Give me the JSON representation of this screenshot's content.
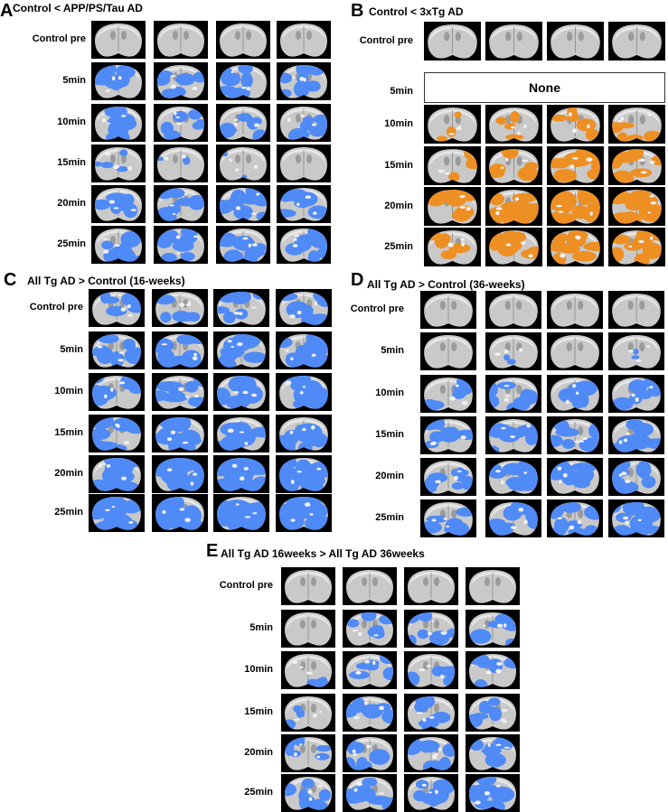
{
  "colors": {
    "blue": "#4f8af6",
    "orange": "#ee8f23",
    "brain": "#c9c9c9",
    "background": "#000000"
  },
  "panels": {
    "A": {
      "letter": "A",
      "title": "Control < APP/PS/Tau AD",
      "color": "blue",
      "rows": [
        "Control pre",
        "5min",
        "10min",
        "15min",
        "20min",
        "25min"
      ],
      "coverage": [
        [
          0,
          0,
          0,
          0
        ],
        [
          0.55,
          0.45,
          0.5,
          0.55
        ],
        [
          0.5,
          0.45,
          0.45,
          0.5
        ],
        [
          0.25,
          0.1,
          0.05,
          0.0
        ],
        [
          0.55,
          0.55,
          0.55,
          0.55
        ],
        [
          0.55,
          0.55,
          0.55,
          0.55
        ]
      ]
    },
    "B": {
      "letter": "B",
      "title": "Control < 3xTg AD",
      "color": "orange",
      "rows": [
        "Control pre",
        "5min",
        "10min",
        "15min",
        "20min",
        "25min"
      ],
      "none_label": "None",
      "coverage": [
        [
          0,
          0,
          0,
          0
        ],
        null,
        [
          0.2,
          0.3,
          0.35,
          0.35
        ],
        [
          0.3,
          0.4,
          0.55,
          0.6
        ],
        [
          0.55,
          0.7,
          0.75,
          0.8
        ],
        [
          0.45,
          0.55,
          0.55,
          0.6
        ]
      ]
    },
    "C": {
      "letter": "C",
      "title": "All Tg AD > Control (16-weeks)",
      "color": "blue",
      "rows": [
        "Control pre",
        "5min",
        "10min",
        "15min",
        "20min",
        "25min"
      ],
      "coverage": [
        [
          0.4,
          0.45,
          0.45,
          0.6
        ],
        [
          0.55,
          0.65,
          0.65,
          0.65
        ],
        [
          0.6,
          0.65,
          0.65,
          0.65
        ],
        [
          0.6,
          0.65,
          0.65,
          0.65
        ],
        [
          0.75,
          0.8,
          0.85,
          0.85
        ],
        [
          0.8,
          0.85,
          0.85,
          0.85
        ]
      ]
    },
    "D": {
      "letter": "D",
      "title": "All Tg AD > Control (36-weeks)",
      "color": "blue",
      "rows": [
        "Control pre",
        "5min",
        "10min",
        "15min",
        "20min",
        "25min"
      ],
      "coverage": [
        [
          0,
          0,
          0,
          0
        ],
        [
          0,
          0.05,
          0,
          0.02
        ],
        [
          0.45,
          0.5,
          0.5,
          0.5
        ],
        [
          0.5,
          0.55,
          0.55,
          0.55
        ],
        [
          0.5,
          0.55,
          0.6,
          0.6
        ],
        [
          0.5,
          0.55,
          0.55,
          0.6
        ]
      ]
    },
    "E": {
      "letter": "E",
      "title": "All Tg AD 16weeks > All Tg AD 36weeks",
      "color": "blue",
      "rows": [
        "Control pre",
        "5min",
        "10min",
        "15min",
        "20min",
        "25min"
      ],
      "coverage": [
        [
          0,
          0,
          0,
          0
        ],
        [
          0,
          0.45,
          0.45,
          0.45
        ],
        [
          0.2,
          0.45,
          0.45,
          0.45
        ],
        [
          0.2,
          0.45,
          0.45,
          0.45
        ],
        [
          0.4,
          0.5,
          0.5,
          0.5
        ],
        [
          0.5,
          0.6,
          0.6,
          0.6
        ]
      ]
    }
  }
}
